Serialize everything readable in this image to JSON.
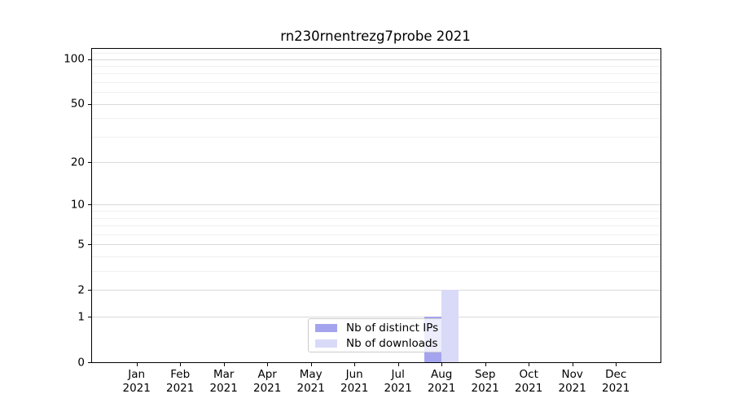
{
  "title": "rn230rnentrezg7probe 2021",
  "chart_data": {
    "type": "bar",
    "title": "rn230rnentrezg7probe 2021",
    "categories": [
      "Jan",
      "Feb",
      "Mar",
      "Apr",
      "May",
      "Jun",
      "Jul",
      "Aug",
      "Sep",
      "Oct",
      "Nov",
      "Dec"
    ],
    "category_year": "2021",
    "series": [
      {
        "name": "Nb of distinct IPs",
        "color": "#a4a4ee",
        "values": [
          0,
          0,
          0,
          0,
          0,
          0,
          0,
          1,
          0,
          0,
          0,
          0
        ]
      },
      {
        "name": "Nb of downloads",
        "color": "#d9d9f8",
        "values": [
          0,
          0,
          0,
          0,
          0,
          0,
          0,
          2,
          0,
          0,
          0,
          0
        ]
      }
    ],
    "xlabel": "",
    "ylabel": "",
    "y_axis": {
      "scale": "log1p",
      "ticks": [
        0,
        1,
        2,
        5,
        10,
        20,
        50,
        100
      ],
      "minor_ticks": [
        3,
        4,
        6,
        7,
        8,
        9,
        30,
        40,
        60,
        70,
        80,
        90,
        110
      ],
      "max": 117
    },
    "grid": true,
    "legend_position": "lower center"
  },
  "colors": {
    "spine": "#000000",
    "major_grid": "#d9d9d9",
    "minor_grid": "#f0f0f0",
    "legend_border": "#cccccc"
  }
}
